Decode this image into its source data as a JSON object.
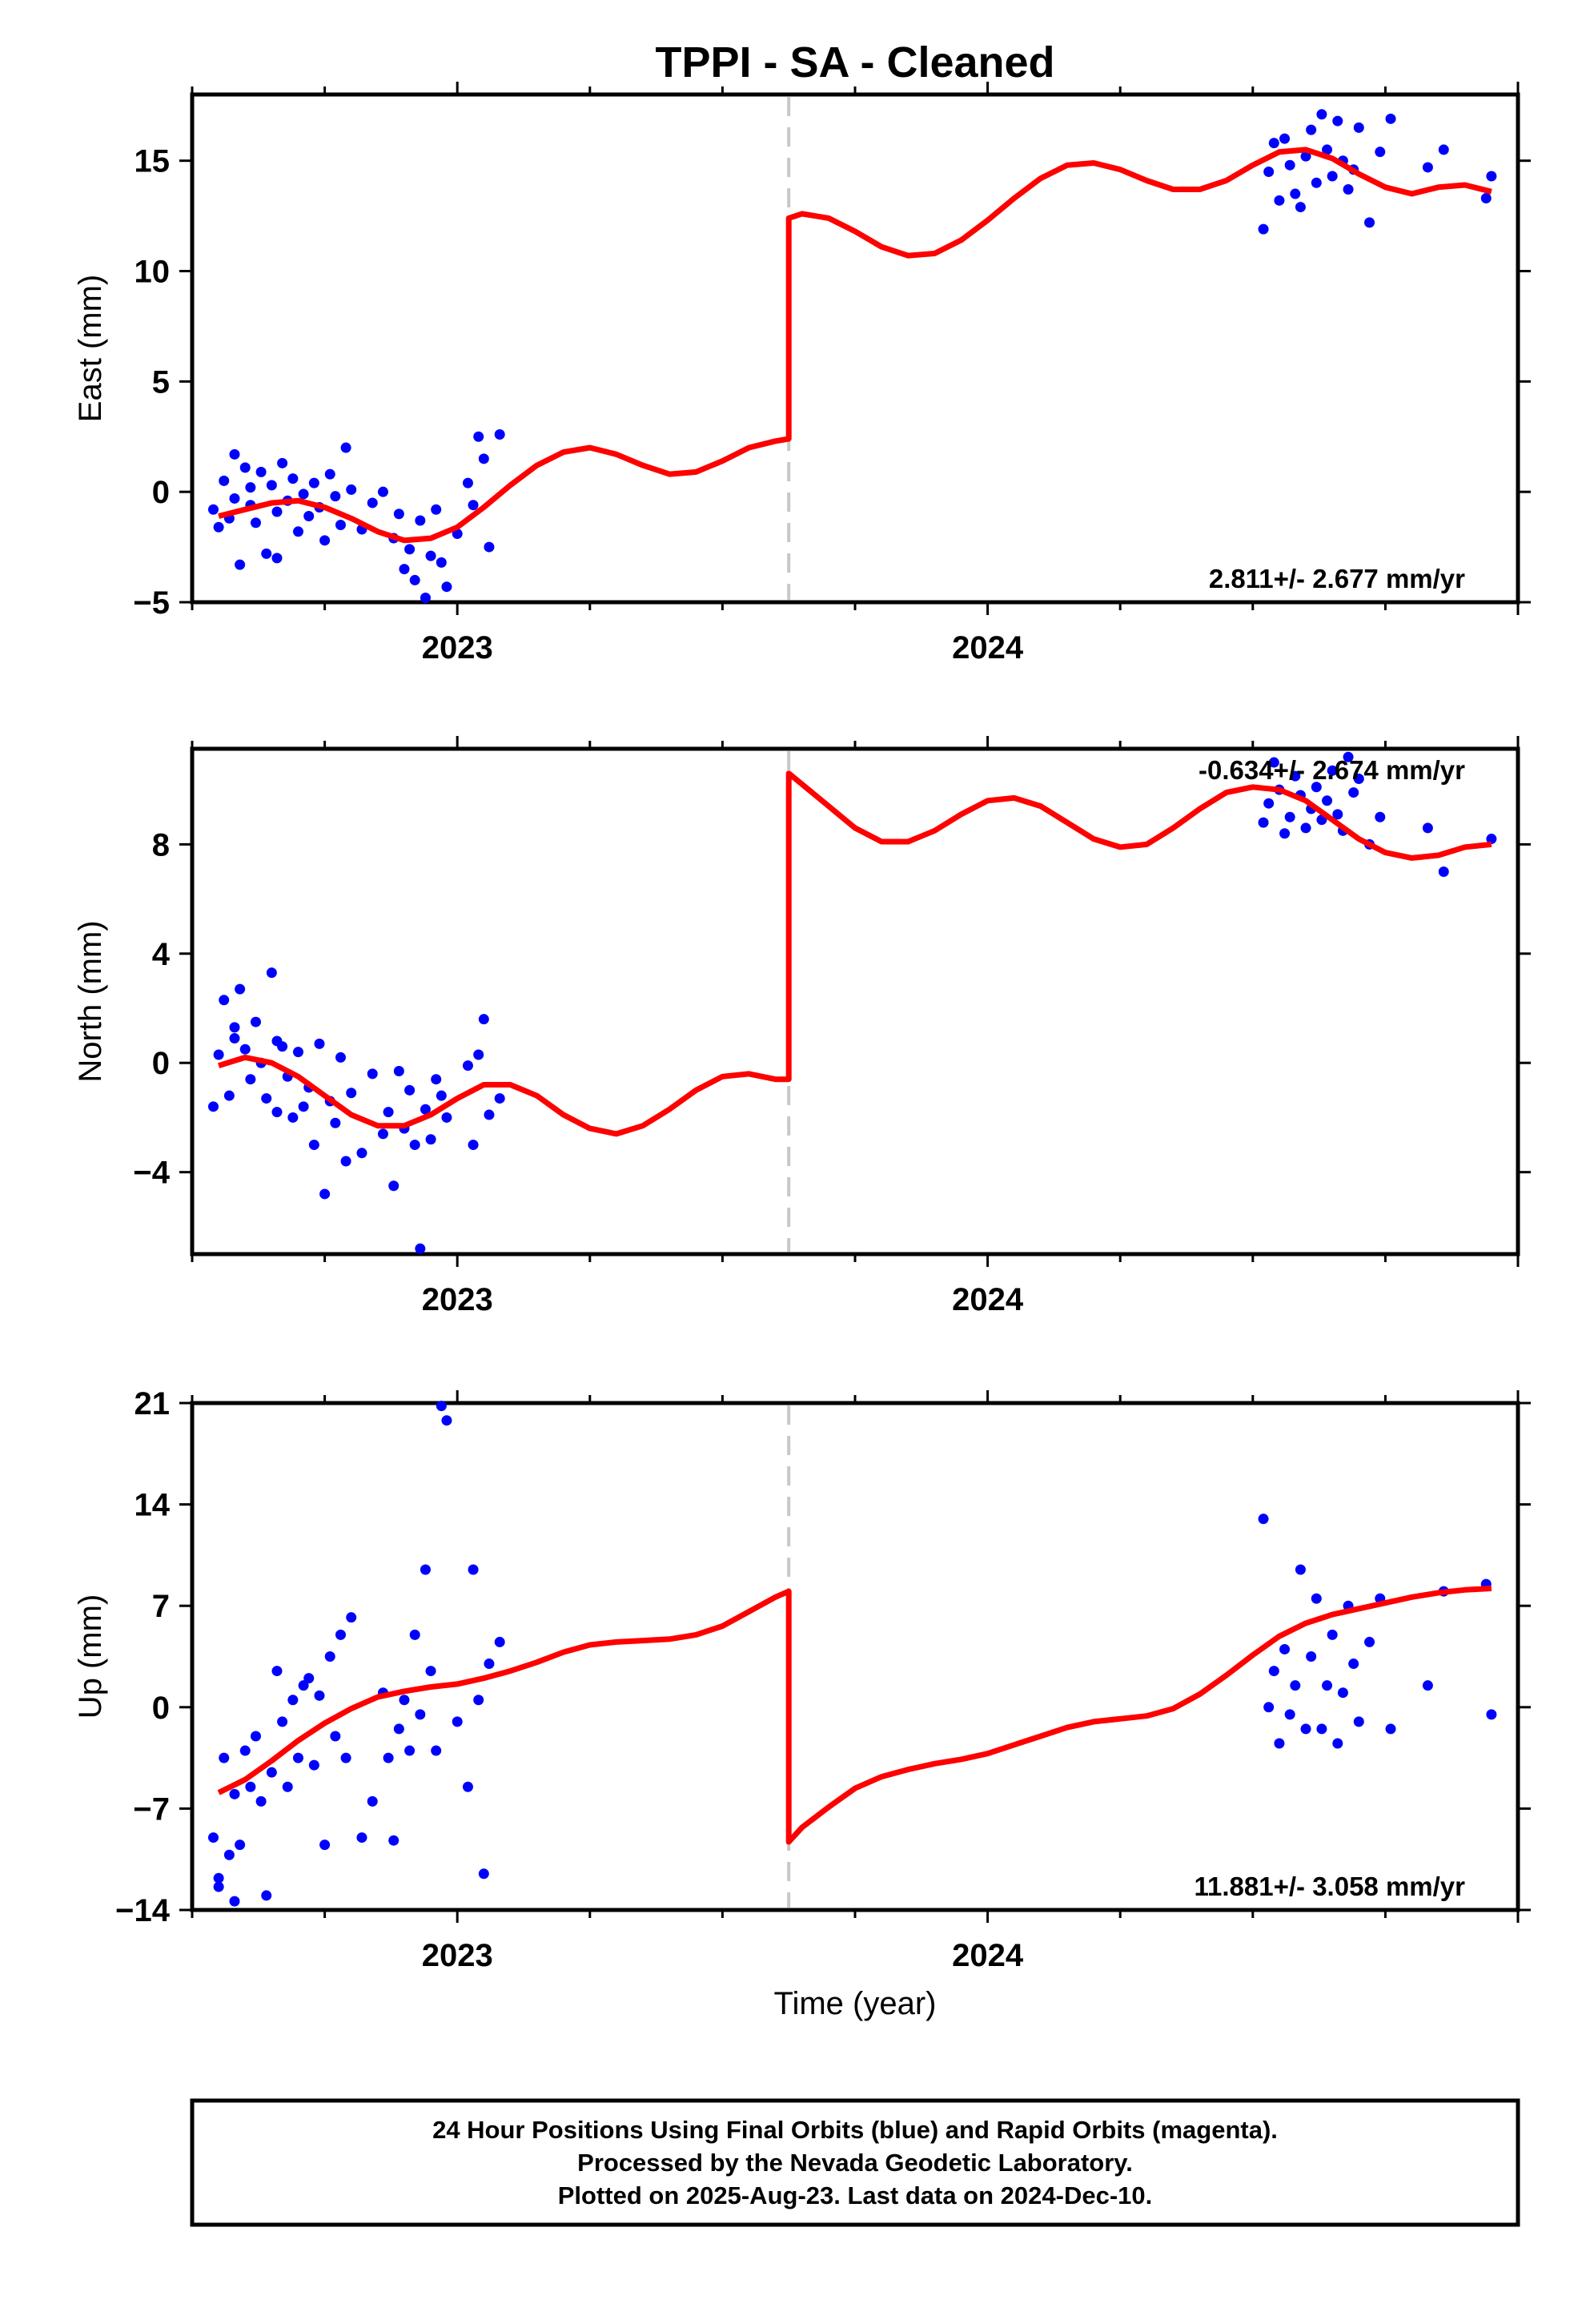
{
  "chart_data": [
    {
      "type": "scatter",
      "panel": "east",
      "title": "TPPI  - SA - Cleaned",
      "ylabel": "East (mm)",
      "xlabel": "",
      "x_ticks": [
        "2023",
        "2024"
      ],
      "xlim": [
        2022.5,
        2025.0
      ],
      "ylim": [
        -5,
        18
      ],
      "yticks": [
        -5,
        0,
        5,
        10,
        15
      ],
      "offset_epoch": 2023.625,
      "rate_label": "2.811+/- 2.677 mm/yr",
      "rate_position": "bottom-right",
      "colors": {
        "points": "#0000ff",
        "model": "#ff0000",
        "offset_line": "#c8c8c8"
      },
      "series": [
        {
          "role": "points",
          "x": [
            2022.54,
            2022.55,
            2022.56,
            2022.57,
            2022.58,
            2022.58,
            2022.59,
            2022.6,
            2022.61,
            2022.61,
            2022.62,
            2022.63,
            2022.64,
            2022.65,
            2022.66,
            2022.66,
            2022.67,
            2022.68,
            2022.69,
            2022.7,
            2022.71,
            2022.72,
            2022.73,
            2022.74,
            2022.75,
            2022.76,
            2022.77,
            2022.78,
            2022.79,
            2022.8,
            2022.82,
            2022.84,
            2022.86,
            2022.88,
            2022.89,
            2022.9,
            2022.91,
            2022.92,
            2022.93,
            2022.94,
            2022.95,
            2022.96,
            2022.97,
            2022.98,
            2023.0,
            2023.02,
            2023.03,
            2023.04,
            2023.05,
            2023.06,
            2023.08,
            2024.52,
            2024.53,
            2024.54,
            2024.55,
            2024.56,
            2024.57,
            2024.58,
            2024.59,
            2024.6,
            2024.61,
            2024.62,
            2024.63,
            2024.64,
            2024.65,
            2024.66,
            2024.67,
            2024.68,
            2024.69,
            2024.7,
            2024.72,
            2024.74,
            2024.76,
            2024.83,
            2024.86,
            2024.94,
            2024.95
          ],
          "y": [
            -0.8,
            -1.6,
            0.5,
            -1.2,
            1.7,
            -0.3,
            -3.3,
            1.1,
            0.2,
            -0.6,
            -1.4,
            0.9,
            -2.8,
            0.3,
            -0.9,
            -3.0,
            1.3,
            -0.4,
            0.6,
            -1.8,
            -0.1,
            -1.1,
            0.4,
            -0.7,
            -2.2,
            0.8,
            -0.2,
            -1.5,
            2.0,
            0.1,
            -1.7,
            -0.5,
            0.0,
            -2.1,
            -1.0,
            -3.5,
            -2.6,
            -4.0,
            -1.3,
            -4.8,
            -2.9,
            -0.8,
            -3.2,
            -4.3,
            -1.9,
            0.4,
            -0.6,
            2.5,
            1.5,
            -2.5,
            2.6,
            11.9,
            14.5,
            15.8,
            13.2,
            16.0,
            14.8,
            13.5,
            12.9,
            15.2,
            16.4,
            14.0,
            17.1,
            15.5,
            14.3,
            16.8,
            15.0,
            13.7,
            14.6,
            16.5,
            12.2,
            15.4,
            16.9,
            14.7,
            15.5,
            13.3,
            14.3
          ]
        },
        {
          "role": "model",
          "x": [
            2022.55,
            2022.6,
            2022.65,
            2022.7,
            2022.75,
            2022.8,
            2022.85,
            2022.9,
            2022.95,
            2023.0,
            2023.05,
            2023.1,
            2023.15,
            2023.2,
            2023.25,
            2023.3,
            2023.35,
            2023.4,
            2023.45,
            2023.5,
            2023.55,
            2023.6,
            2023.625,
            2023.625,
            2023.65,
            2023.7,
            2023.75,
            2023.8,
            2023.85,
            2023.9,
            2023.95,
            2024.0,
            2024.05,
            2024.1,
            2024.15,
            2024.2,
            2024.25,
            2024.3,
            2024.35,
            2024.4,
            2024.45,
            2024.5,
            2024.55,
            2024.6,
            2024.65,
            2024.7,
            2024.75,
            2024.8,
            2024.85,
            2024.9,
            2024.95
          ],
          "y": [
            -1.1,
            -0.8,
            -0.5,
            -0.4,
            -0.7,
            -1.2,
            -1.8,
            -2.2,
            -2.1,
            -1.6,
            -0.7,
            0.3,
            1.2,
            1.8,
            2.0,
            1.7,
            1.2,
            0.8,
            0.9,
            1.4,
            2.0,
            2.3,
            2.4,
            12.4,
            12.6,
            12.4,
            11.8,
            11.1,
            10.7,
            10.8,
            11.4,
            12.3,
            13.3,
            14.2,
            14.8,
            14.9,
            14.6,
            14.1,
            13.7,
            13.7,
            14.1,
            14.8,
            15.4,
            15.5,
            15.1,
            14.4,
            13.8,
            13.5,
            13.8,
            13.9,
            13.6
          ]
        }
      ]
    },
    {
      "type": "scatter",
      "panel": "north",
      "ylabel": "North (mm)",
      "xlabel": "",
      "x_ticks": [
        "2023",
        "2024"
      ],
      "xlim": [
        2022.5,
        2025.0
      ],
      "ylim": [
        -7,
        11.5
      ],
      "yticks": [
        -4,
        0,
        4,
        8
      ],
      "offset_epoch": 2023.625,
      "rate_label": "-0.634+/- 2.674 mm/yr",
      "rate_position": "top-right",
      "colors": {
        "points": "#0000ff",
        "model": "#ff0000",
        "offset_line": "#c8c8c8"
      },
      "series": [
        {
          "role": "points",
          "x": [
            2022.54,
            2022.55,
            2022.56,
            2022.57,
            2022.58,
            2022.58,
            2022.59,
            2022.6,
            2022.61,
            2022.62,
            2022.63,
            2022.64,
            2022.65,
            2022.66,
            2022.66,
            2022.67,
            2022.68,
            2022.69,
            2022.7,
            2022.71,
            2022.72,
            2022.73,
            2022.74,
            2022.75,
            2022.76,
            2022.77,
            2022.78,
            2022.79,
            2022.8,
            2022.82,
            2022.84,
            2022.86,
            2022.87,
            2022.88,
            2022.89,
            2022.9,
            2022.91,
            2022.92,
            2022.93,
            2022.94,
            2022.95,
            2022.96,
            2022.97,
            2022.98,
            2023.02,
            2023.03,
            2023.04,
            2023.05,
            2023.06,
            2023.08,
            2024.52,
            2024.53,
            2024.54,
            2024.55,
            2024.56,
            2024.57,
            2024.58,
            2024.59,
            2024.6,
            2024.61,
            2024.62,
            2024.63,
            2024.64,
            2024.65,
            2024.66,
            2024.67,
            2024.68,
            2024.69,
            2024.7,
            2024.72,
            2024.74,
            2024.83,
            2024.86,
            2024.95
          ],
          "y": [
            -1.6,
            0.3,
            2.3,
            -1.2,
            0.9,
            1.3,
            2.7,
            0.5,
            -0.6,
            1.5,
            0.0,
            -1.3,
            3.3,
            0.8,
            -1.8,
            0.6,
            -0.5,
            -2.0,
            0.4,
            -1.6,
            -0.9,
            -3.0,
            0.7,
            -4.8,
            -1.4,
            -2.2,
            0.2,
            -3.6,
            -1.1,
            -3.3,
            -0.4,
            -2.6,
            -1.8,
            -4.5,
            -0.3,
            -2.4,
            -1.0,
            -3.0,
            -6.8,
            -1.7,
            -2.8,
            -0.6,
            -1.2,
            -2.0,
            -0.1,
            -3.0,
            0.3,
            1.6,
            -1.9,
            -1.3,
            8.8,
            9.5,
            11.0,
            10.0,
            8.4,
            9.0,
            10.5,
            9.8,
            8.6,
            9.3,
            10.1,
            8.9,
            9.6,
            10.7,
            9.1,
            8.5,
            11.2,
            9.9,
            10.4,
            8.0,
            9.0,
            8.6,
            7.0,
            8.2
          ]
        },
        {
          "role": "model",
          "x": [
            2022.55,
            2022.6,
            2022.65,
            2022.7,
            2022.75,
            2022.8,
            2022.85,
            2022.9,
            2022.95,
            2023.0,
            2023.05,
            2023.1,
            2023.15,
            2023.2,
            2023.25,
            2023.3,
            2023.35,
            2023.4,
            2023.45,
            2023.5,
            2023.55,
            2023.6,
            2023.625,
            2023.625,
            2023.65,
            2023.7,
            2023.75,
            2023.8,
            2023.85,
            2023.9,
            2023.95,
            2024.0,
            2024.05,
            2024.1,
            2024.15,
            2024.2,
            2024.25,
            2024.3,
            2024.35,
            2024.4,
            2024.45,
            2024.5,
            2024.55,
            2024.6,
            2024.65,
            2024.7,
            2024.75,
            2024.8,
            2024.85,
            2024.9,
            2024.95
          ],
          "y": [
            -0.1,
            0.2,
            0.0,
            -0.5,
            -1.2,
            -1.9,
            -2.3,
            -2.3,
            -1.9,
            -1.3,
            -0.8,
            -0.8,
            -1.2,
            -1.9,
            -2.4,
            -2.6,
            -2.3,
            -1.7,
            -1.0,
            -0.5,
            -0.4,
            -0.6,
            -0.6,
            10.6,
            10.2,
            9.4,
            8.6,
            8.1,
            8.1,
            8.5,
            9.1,
            9.6,
            9.7,
            9.4,
            8.8,
            8.2,
            7.9,
            8.0,
            8.6,
            9.3,
            9.9,
            10.1,
            10.0,
            9.6,
            8.9,
            8.2,
            7.7,
            7.5,
            7.6,
            7.9,
            8.0
          ]
        }
      ]
    },
    {
      "type": "scatter",
      "panel": "up",
      "ylabel": "Up (mm)",
      "xlabel": "Time (year)",
      "x_ticks": [
        "2023",
        "2024"
      ],
      "xlim": [
        2022.5,
        2025.0
      ],
      "ylim": [
        -14,
        21
      ],
      "yticks": [
        -14,
        -7,
        0,
        7,
        14,
        21
      ],
      "offset_epoch": 2023.625,
      "rate_label": "11.881+/- 3.058 mm/yr",
      "rate_position": "bottom-right",
      "colors": {
        "points": "#0000ff",
        "model": "#ff0000",
        "offset_line": "#c8c8c8"
      },
      "series": [
        {
          "role": "points",
          "x": [
            2022.54,
            2022.55,
            2022.55,
            2022.56,
            2022.57,
            2022.58,
            2022.58,
            2022.59,
            2022.6,
            2022.61,
            2022.62,
            2022.63,
            2022.64,
            2022.65,
            2022.66,
            2022.67,
            2022.68,
            2022.69,
            2022.7,
            2022.71,
            2022.72,
            2022.73,
            2022.74,
            2022.75,
            2022.76,
            2022.77,
            2022.78,
            2022.79,
            2022.8,
            2022.82,
            2022.84,
            2022.86,
            2022.87,
            2022.88,
            2022.89,
            2022.9,
            2022.91,
            2022.92,
            2022.93,
            2022.94,
            2022.95,
            2022.96,
            2022.97,
            2022.98,
            2023.0,
            2023.02,
            2023.03,
            2023.04,
            2023.05,
            2023.06,
            2023.08,
            2024.52,
            2024.53,
            2024.54,
            2024.55,
            2024.56,
            2024.57,
            2024.58,
            2024.59,
            2024.6,
            2024.61,
            2024.62,
            2024.63,
            2024.64,
            2024.65,
            2024.66,
            2024.67,
            2024.68,
            2024.69,
            2024.7,
            2024.72,
            2024.74,
            2024.76,
            2024.83,
            2024.86,
            2024.94,
            2024.95
          ],
          "y": [
            -9.0,
            -11.8,
            -12.4,
            -3.5,
            -10.2,
            -13.4,
            -6.0,
            -9.5,
            -3.0,
            -5.5,
            -2.0,
            -6.5,
            -13.0,
            -4.5,
            2.5,
            -1.0,
            -5.5,
            0.5,
            -3.5,
            1.5,
            2.0,
            -4.0,
            0.8,
            -9.5,
            3.5,
            -2.0,
            5.0,
            -3.5,
            6.2,
            -9.0,
            -6.5,
            1.0,
            -3.5,
            -9.2,
            -1.5,
            0.5,
            -3.0,
            5.0,
            -0.5,
            9.5,
            2.5,
            -3.0,
            20.8,
            19.8,
            -1.0,
            -5.5,
            9.5,
            0.5,
            -11.5,
            3.0,
            4.5,
            13.0,
            0.0,
            2.5,
            -2.5,
            4.0,
            -0.5,
            1.5,
            9.5,
            -1.5,
            3.5,
            7.5,
            -1.5,
            1.5,
            5.0,
            -2.5,
            1.0,
            7.0,
            3.0,
            -1.0,
            4.5,
            7.5,
            -1.5,
            1.5,
            8.0,
            8.5,
            -0.5
          ]
        },
        {
          "role": "model",
          "x": [
            2022.55,
            2022.6,
            2022.65,
            2022.7,
            2022.75,
            2022.8,
            2022.85,
            2022.9,
            2022.95,
            2023.0,
            2023.05,
            2023.1,
            2023.15,
            2023.2,
            2023.25,
            2023.3,
            2023.35,
            2023.4,
            2023.45,
            2023.5,
            2023.55,
            2023.6,
            2023.625,
            2023.625,
            2023.65,
            2023.7,
            2023.75,
            2023.8,
            2023.85,
            2023.9,
            2023.95,
            2024.0,
            2024.05,
            2024.1,
            2024.15,
            2024.2,
            2024.25,
            2024.3,
            2024.35,
            2024.4,
            2024.45,
            2024.5,
            2024.55,
            2024.6,
            2024.65,
            2024.7,
            2024.75,
            2024.8,
            2024.85,
            2024.9,
            2024.95
          ],
          "y": [
            -5.9,
            -5.0,
            -3.7,
            -2.3,
            -1.1,
            -0.1,
            0.7,
            1.1,
            1.4,
            1.6,
            2.0,
            2.5,
            3.1,
            3.8,
            4.3,
            4.5,
            4.6,
            4.7,
            5.0,
            5.6,
            6.6,
            7.6,
            8.0,
            -9.3,
            -8.3,
            -6.9,
            -5.6,
            -4.8,
            -4.3,
            -3.9,
            -3.6,
            -3.2,
            -2.6,
            -2.0,
            -1.4,
            -1.0,
            -0.8,
            -0.6,
            -0.1,
            0.9,
            2.2,
            3.6,
            4.9,
            5.8,
            6.4,
            6.8,
            7.2,
            7.6,
            7.9,
            8.1,
            8.2
          ]
        }
      ]
    }
  ],
  "footer": {
    "line1": "24 Hour Positions Using Final Orbits (blue) and Rapid Orbits (magenta).",
    "line2": "Processed by the Nevada Geodetic Laboratory.",
    "line3": "Plotted on 2025-Aug-23. Last data on 2024-Dec-10."
  }
}
